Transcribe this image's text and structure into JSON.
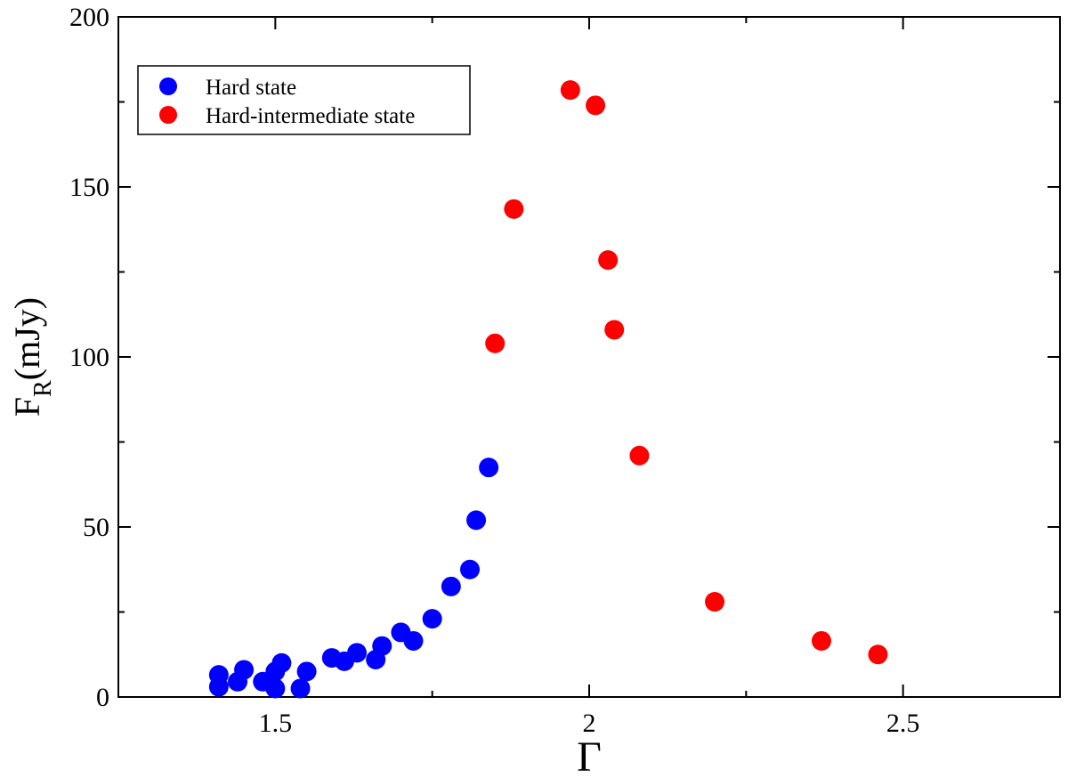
{
  "chart_data": {
    "type": "scatter",
    "title": "",
    "xlabel": "Γ",
    "ylabel": "F_R (mJy)",
    "ylabel_main": "F",
    "ylabel_sub": "R",
    "ylabel_unit": "(mJy)",
    "xlim": [
      1.25,
      2.75
    ],
    "ylim": [
      0,
      200
    ],
    "xticks": [
      1.5,
      2,
      2.5
    ],
    "xtick_labels": [
      "1.5",
      "2",
      "2.5"
    ],
    "xminor": [
      1.25,
      1.75,
      2.25,
      2.75
    ],
    "yticks": [
      0,
      50,
      100,
      150,
      200
    ],
    "ytick_labels": [
      "0",
      "50",
      "100",
      "150",
      "200"
    ],
    "yminor": [
      25,
      75,
      125,
      175
    ],
    "grid": false,
    "legend_position": "top-left",
    "series": [
      {
        "name": "Hard state",
        "color": "#0000ff",
        "points": [
          [
            1.41,
            6.5
          ],
          [
            1.41,
            3.0
          ],
          [
            1.44,
            4.5
          ],
          [
            1.45,
            8.0
          ],
          [
            1.48,
            4.5
          ],
          [
            1.5,
            7.5
          ],
          [
            1.5,
            2.5
          ],
          [
            1.51,
            10.0
          ],
          [
            1.54,
            2.5
          ],
          [
            1.55,
            7.5
          ],
          [
            1.59,
            11.5
          ],
          [
            1.61,
            10.5
          ],
          [
            1.63,
            13.0
          ],
          [
            1.66,
            11.0
          ],
          [
            1.67,
            15.0
          ],
          [
            1.7,
            19.0
          ],
          [
            1.72,
            16.5
          ],
          [
            1.75,
            23.0
          ],
          [
            1.78,
            32.5
          ],
          [
            1.81,
            37.5
          ],
          [
            1.82,
            52.0
          ],
          [
            1.84,
            67.5
          ]
        ]
      },
      {
        "name": "Hard-intermediate state",
        "color": "#ff0000",
        "points": [
          [
            1.85,
            104.0
          ],
          [
            1.88,
            143.5
          ],
          [
            1.97,
            178.5
          ],
          [
            2.01,
            174.0
          ],
          [
            2.03,
            128.5
          ],
          [
            2.04,
            108.0
          ],
          [
            2.08,
            71.0
          ],
          [
            2.2,
            28.0
          ],
          [
            2.37,
            16.5
          ],
          [
            2.46,
            12.5
          ]
        ]
      }
    ]
  }
}
